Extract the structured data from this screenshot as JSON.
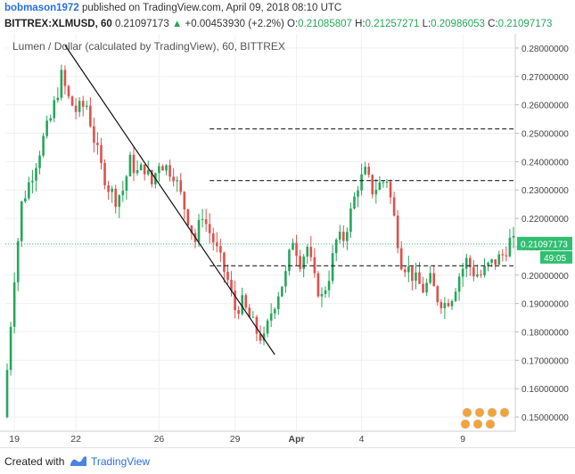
{
  "header": {
    "author": "bobmason1972",
    "published_text": "published on TradingView.com, April 09, 2018 08:10 UTC",
    "symbol": "BITTREX:XLMUSD, 60",
    "last": "0.21097173",
    "change": "+0.00453930 (+2.2%)",
    "o_label": "O:",
    "o_value": "0.21085807",
    "h_label": "H:",
    "h_value": "0.21257271",
    "l_label": "L:",
    "l_value": "0.20986053",
    "c_label": "C:",
    "c_value": "0.21097173"
  },
  "chart_data": {
    "type": "candlestick",
    "title": "Lumen / Dollar (calculated by TradingView), 60, BITTREX",
    "ylim": [
      0.145,
      0.285
    ],
    "y_ticks": [
      "0.28000000",
      "0.27000000",
      "0.26000000",
      "0.25000000",
      "0.24000000",
      "0.23000000",
      "0.22000000",
      "0.21000000",
      "0.20000000",
      "0.19000000",
      "0.18000000",
      "0.17000000",
      "0.16000000",
      "0.15000000"
    ],
    "x_ticks": [
      "19",
      "22",
      "26",
      "29",
      "Apr",
      "4",
      "9"
    ],
    "current_price_label": "0.21097173",
    "countdown_label": "49:05",
    "price_path": [
      [
        0,
        0.15
      ],
      [
        3,
        0.2
      ],
      [
        5,
        0.225
      ],
      [
        8,
        0.236
      ],
      [
        11,
        0.248
      ],
      [
        13,
        0.255
      ],
      [
        16,
        0.27
      ],
      [
        18,
        0.262
      ],
      [
        20,
        0.258
      ],
      [
        23,
        0.26
      ],
      [
        25,
        0.248
      ],
      [
        27,
        0.238
      ],
      [
        29,
        0.231
      ],
      [
        31,
        0.227
      ],
      [
        33,
        0.23
      ],
      [
        35,
        0.24
      ],
      [
        37,
        0.236
      ],
      [
        39,
        0.238
      ],
      [
        41,
        0.232
      ],
      [
        43,
        0.24
      ],
      [
        45,
        0.238
      ],
      [
        47,
        0.236
      ],
      [
        49,
        0.228
      ],
      [
        51,
        0.22
      ],
      [
        53,
        0.212
      ],
      [
        55,
        0.222
      ],
      [
        56,
        0.218
      ],
      [
        58,
        0.212
      ],
      [
        60,
        0.205
      ],
      [
        62,
        0.198
      ],
      [
        64,
        0.188
      ],
      [
        66,
        0.19
      ],
      [
        68,
        0.185
      ],
      [
        70,
        0.18
      ],
      [
        72,
        0.177
      ],
      [
        74,
        0.187
      ],
      [
        76,
        0.194
      ],
      [
        78,
        0.2
      ],
      [
        80,
        0.213
      ],
      [
        82,
        0.205
      ],
      [
        84,
        0.21
      ],
      [
        86,
        0.198
      ],
      [
        88,
        0.192
      ],
      [
        90,
        0.2
      ],
      [
        92,
        0.212
      ],
      [
        94,
        0.213
      ],
      [
        96,
        0.222
      ],
      [
        98,
        0.232
      ],
      [
        100,
        0.236
      ],
      [
        102,
        0.23
      ],
      [
        104,
        0.232
      ],
      [
        106,
        0.234
      ],
      [
        108,
        0.22
      ],
      [
        110,
        0.205
      ],
      [
        112,
        0.202
      ],
      [
        114,
        0.198
      ],
      [
        116,
        0.195
      ],
      [
        118,
        0.198
      ],
      [
        120,
        0.192
      ],
      [
        122,
        0.19
      ],
      [
        124,
        0.193
      ],
      [
        126,
        0.2
      ],
      [
        128,
        0.205
      ],
      [
        130,
        0.201
      ],
      [
        132,
        0.2
      ],
      [
        134,
        0.203
      ],
      [
        136,
        0.205
      ],
      [
        138,
        0.207
      ],
      [
        140,
        0.212
      ],
      [
        141,
        0.211
      ]
    ],
    "trendline": [
      [
        16,
        0.281
      ],
      [
        74,
        0.172
      ]
    ],
    "levels": [
      0.2515,
      0.2333,
      0.2033
    ],
    "level_x_start": 56
  },
  "footer": {
    "created_with": "Created with",
    "brand": "TradingView"
  },
  "colors": {
    "up": "#26a65b",
    "down": "#e0504c",
    "accent": "#2a6fdb",
    "price_tag": "#2fbf71"
  }
}
